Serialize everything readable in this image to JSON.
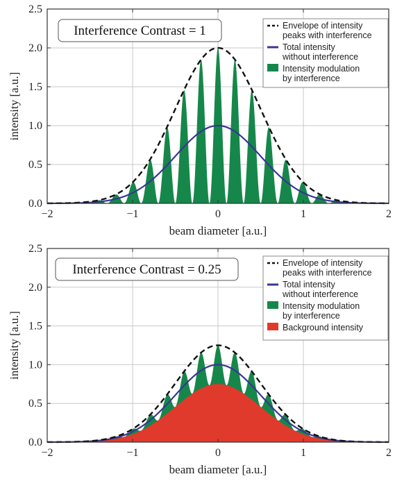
{
  "chart_data": [
    {
      "type": "area",
      "title": "Interference Contrast = 1",
      "xlabel": "beam diameter   [a.u.]",
      "ylabel": "intensity  [a.u.]",
      "xlim": [
        -2,
        2
      ],
      "ylim": [
        0,
        2.5
      ],
      "xticks": [
        "−2",
        "−1",
        "0",
        "1",
        "2"
      ],
      "yticks": [
        "0.0",
        "0.5",
        "1.0",
        "1.5",
        "2.0",
        "2.5"
      ],
      "grid": true,
      "legend_position": "top-right",
      "contrast": 1,
      "fringe_period": 0.2,
      "gaussian": {
        "amplitude": 1.0,
        "sigma": 0.5
      },
      "series": [
        {
          "name": "Envelope of intensity peaks with interference",
          "legend_lines": [
            "Envelope of intensity",
            "peaks with interference"
          ],
          "style": "dashed",
          "color": "#111111",
          "peak": 2.0
        },
        {
          "name": "Total intensity without interference",
          "legend_lines": [
            "Total intensity",
            "without interference"
          ],
          "style": "line",
          "color": "#3a3594",
          "peak": 1.0
        },
        {
          "name": "Intensity modulation by interference",
          "legend_lines": [
            "Intensity modulation",
            "by interference"
          ],
          "style": "fill",
          "color": "#16874a",
          "peak": 2.0
        }
      ]
    },
    {
      "type": "area",
      "title": "Interference Contrast = 0.25",
      "xlabel": "beam diameter   [a.u.]",
      "ylabel": "intensity  [a.u.]",
      "xlim": [
        -2,
        2
      ],
      "ylim": [
        0,
        2.5
      ],
      "xticks": [
        "−2",
        "−1",
        "0",
        "1",
        "2"
      ],
      "yticks": [
        "0.0",
        "0.5",
        "1.0",
        "1.5",
        "2.0",
        "2.5"
      ],
      "grid": true,
      "legend_position": "top-right",
      "contrast": 0.25,
      "fringe_period": 0.2,
      "gaussian": {
        "amplitude": 1.0,
        "sigma": 0.5
      },
      "series": [
        {
          "name": "Envelope of intensity peaks with interference",
          "legend_lines": [
            "Envelope of intensity",
            "peaks with interference"
          ],
          "style": "dashed",
          "color": "#111111",
          "peak": 1.25
        },
        {
          "name": "Total intensity without interference",
          "legend_lines": [
            "Total intensity",
            "without interference"
          ],
          "style": "line",
          "color": "#3a3594",
          "peak": 1.0
        },
        {
          "name": "Intensity modulation by interference",
          "legend_lines": [
            "Intensity modulation",
            "by interference"
          ],
          "style": "fill",
          "color": "#16874a",
          "peak": 1.25
        },
        {
          "name": "Background intensity",
          "legend_lines": [
            "Background intensity"
          ],
          "style": "fill",
          "color": "#e03a2c",
          "peak": 0.75
        }
      ]
    }
  ]
}
